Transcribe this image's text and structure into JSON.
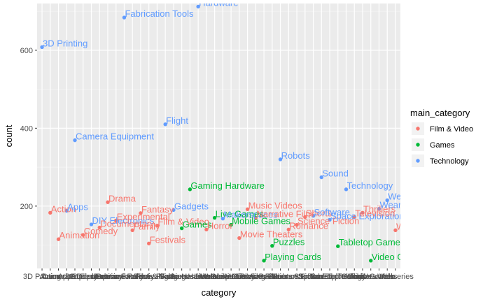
{
  "chart_data": {
    "type": "scatter",
    "title": "",
    "xlabel": "category",
    "ylabel": "count",
    "ylim": [
      40,
      720
    ],
    "y_ticks": [
      200,
      400,
      600
    ],
    "grid": true,
    "legend_position": "right",
    "legend_title": "main_category",
    "series_colors": {
      "Film & Video": "#F8766D",
      "Games": "#00BA38",
      "Technology": "#619CFF"
    },
    "legend": [
      "Film & Video",
      "Games",
      "Technology"
    ],
    "x_tick_labels": [
      "3D Printing",
      "Accessories"
    ],
    "points": [
      {
        "label": "3D Printing",
        "category": "Technology",
        "x": 1,
        "y": 608
      },
      {
        "label": "Action",
        "category": "Film & Video",
        "x": 2,
        "y": 183
      },
      {
        "label": "Animation",
        "category": "Film & Video",
        "x": 3,
        "y": 115
      },
      {
        "label": "Apps",
        "category": "Technology",
        "x": 4,
        "y": 188
      },
      {
        "label": "Camera Equipment",
        "category": "Technology",
        "x": 5,
        "y": 369
      },
      {
        "label": "Comedy",
        "category": "Film & Video",
        "x": 6,
        "y": 126
      },
      {
        "label": "DIY Electronics",
        "category": "Technology",
        "x": 7,
        "y": 153
      },
      {
        "label": "Documentary",
        "category": "Film & Video",
        "x": 8,
        "y": 145
      },
      {
        "label": "Drama",
        "category": "Film & Video",
        "x": 9,
        "y": 210
      },
      {
        "label": "Experimental",
        "category": "Film & Video",
        "x": 10,
        "y": 163
      },
      {
        "label": "Fabrication Tools",
        "category": "Technology",
        "x": 11,
        "y": 684
      },
      {
        "label": "Family",
        "category": "Film & Video",
        "x": 12,
        "y": 138
      },
      {
        "label": "Fantasy",
        "category": "Film & Video",
        "x": 13,
        "y": 182
      },
      {
        "label": "Festivals",
        "category": "Film & Video",
        "x": 14,
        "y": 104
      },
      {
        "label": "Film & Video",
        "category": "Film & Video",
        "x": 15,
        "y": 150
      },
      {
        "label": "Flight",
        "category": "Technology",
        "x": 16,
        "y": 410
      },
      {
        "label": "Gadgets",
        "category": "Technology",
        "x": 17,
        "y": 190
      },
      {
        "label": "Games",
        "category": "Games",
        "x": 18,
        "y": 143
      },
      {
        "label": "Gaming Hardware",
        "category": "Games",
        "x": 19,
        "y": 243
      },
      {
        "label": "Hardware",
        "category": "Technology",
        "x": 20,
        "y": 712
      },
      {
        "label": "Horror",
        "category": "Film & Video",
        "x": 21,
        "y": 140
      },
      {
        "label": "Live Games",
        "category": "Games",
        "x": 22,
        "y": 170
      },
      {
        "label": "Makerspaces",
        "category": "Technology",
        "x": 23,
        "y": 168
      },
      {
        "label": "Mobile Games",
        "category": "Games",
        "x": 24,
        "y": 152
      },
      {
        "label": "Movie Theaters",
        "category": "Film & Video",
        "x": 25,
        "y": 118
      },
      {
        "label": "Music Videos",
        "category": "Film & Video",
        "x": 26,
        "y": 192
      },
      {
        "label": "Narrative Film",
        "category": "Film & Video",
        "x": 27,
        "y": 170
      },
      {
        "label": "Playing Cards",
        "category": "Games",
        "x": 28,
        "y": 60
      },
      {
        "label": "Puzzles",
        "category": "Games",
        "x": 29,
        "y": 98
      },
      {
        "label": "Robots",
        "category": "Technology",
        "x": 30,
        "y": 320
      },
      {
        "label": "Romance",
        "category": "Film & Video",
        "x": 31,
        "y": 140
      },
      {
        "label": "Science Fiction",
        "category": "Film & Video",
        "x": 32,
        "y": 152
      },
      {
        "label": "Shorts",
        "category": "Film & Video",
        "x": 33,
        "y": 172
      },
      {
        "label": "Software",
        "category": "Technology",
        "x": 34,
        "y": 175
      },
      {
        "label": "Sound",
        "category": "Technology",
        "x": 35,
        "y": 274
      },
      {
        "label": "Space Exploration",
        "category": "Technology",
        "x": 36,
        "y": 165
      },
      {
        "label": "Tabletop Games",
        "category": "Games",
        "x": 37,
        "y": 97
      },
      {
        "label": "Technology",
        "category": "Technology",
        "x": 38,
        "y": 243
      },
      {
        "label": "Television",
        "category": "Film & Video",
        "x": 39,
        "y": 172
      },
      {
        "label": "Thrillers",
        "category": "Film & Video",
        "x": 40,
        "y": 183
      },
      {
        "label": "Video Games",
        "category": "Games",
        "x": 41,
        "y": 60
      },
      {
        "label": "Wearables",
        "category": "Technology",
        "x": 42,
        "y": 193
      },
      {
        "label": "Web",
        "category": "Technology",
        "x": 43,
        "y": 215
      },
      {
        "label": "Webseries",
        "category": "Film & Video",
        "x": 44,
        "y": 138
      }
    ]
  }
}
